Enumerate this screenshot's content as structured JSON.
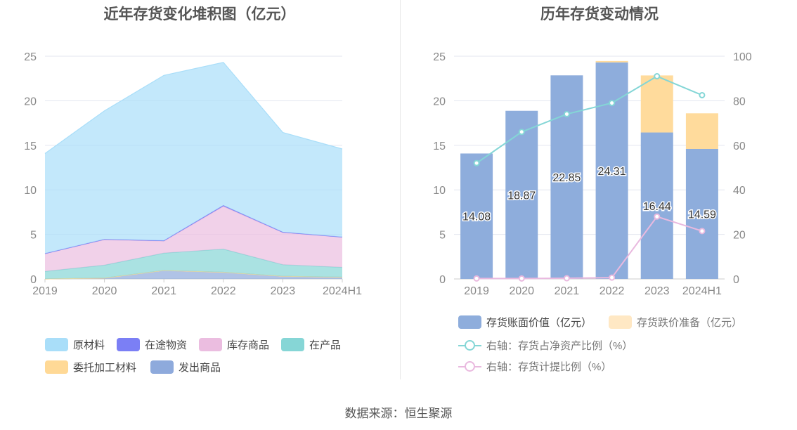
{
  "source": "数据来源：恒生聚源",
  "chart_data": [
    {
      "type": "area",
      "stacked": true,
      "title": "近年存货变化堆积图（亿元）",
      "categories": [
        "2019",
        "2020",
        "2021",
        "2022",
        "2023",
        "2024H1"
      ],
      "ylim": [
        0,
        25
      ],
      "yticks": [
        0,
        5,
        10,
        15,
        20,
        25
      ],
      "grid": true,
      "legend_position": "bottom",
      "series": [
        {
          "name": "发出商品",
          "color": "#8eaadc",
          "values": [
            0.0,
            0.1,
            0.95,
            0.75,
            0.3,
            0.2
          ]
        },
        {
          "name": "委托加工材料",
          "color": "#ffd996",
          "values": [
            0.0,
            0.0,
            0.0,
            0.0,
            0.0,
            0.0
          ]
        },
        {
          "name": "在产品",
          "color": "#86d6d6",
          "values": [
            0.85,
            1.45,
            1.95,
            2.6,
            1.3,
            1.1
          ]
        },
        {
          "name": "库存商品",
          "color": "#ebbde0",
          "values": [
            2.0,
            2.85,
            1.35,
            4.8,
            3.6,
            3.4
          ]
        },
        {
          "name": "在途物资",
          "color": "#7b7ff5",
          "values": [
            0.0,
            0.05,
            0.05,
            0.1,
            0.05,
            0.0
          ]
        },
        {
          "name": "原材料",
          "color": "#a9def9",
          "values": [
            11.23,
            14.42,
            18.55,
            16.06,
            11.19,
            9.89
          ]
        }
      ],
      "legend_order": [
        "原材料",
        "在途物资",
        "库存商品",
        "在产品",
        "委托加工材料",
        "发出商品"
      ]
    },
    {
      "type": "bar+line",
      "title": "历年存货变动情况",
      "categories": [
        "2019",
        "2020",
        "2021",
        "2022",
        "2023",
        "2024H1"
      ],
      "ylim": [
        0,
        25
      ],
      "yticks": [
        0,
        5,
        10,
        15,
        20,
        25
      ],
      "y2lim": [
        0,
        100
      ],
      "y2ticks": [
        0,
        20,
        40,
        60,
        80,
        100
      ],
      "grid": true,
      "legend_position": "bottom",
      "bars": [
        {
          "name": "存货账面价值（亿元）",
          "color": "#8eaddc",
          "values": [
            14.08,
            18.87,
            22.85,
            24.31,
            16.44,
            14.59
          ],
          "labels": [
            "14.08",
            "18.87",
            "22.85",
            "24.31",
            "16.44",
            "14.59"
          ]
        },
        {
          "name": "存货跌价准备（亿元）",
          "color": "#ffdb9c",
          "values": [
            0.0,
            0.0,
            0.0,
            0.15,
            6.4,
            4.0
          ]
        }
      ],
      "lines": [
        {
          "name": "右轴：存货占净资产比例（%）",
          "color": "#84d6d6",
          "axis": "right",
          "values": [
            52,
            66,
            74,
            79,
            91,
            82.5
          ]
        },
        {
          "name": "右轴：存货计提比例（%）",
          "color": "#e9b9df",
          "axis": "right",
          "values": [
            0.2,
            0.2,
            0.3,
            0.6,
            28,
            21.5
          ]
        }
      ]
    }
  ]
}
